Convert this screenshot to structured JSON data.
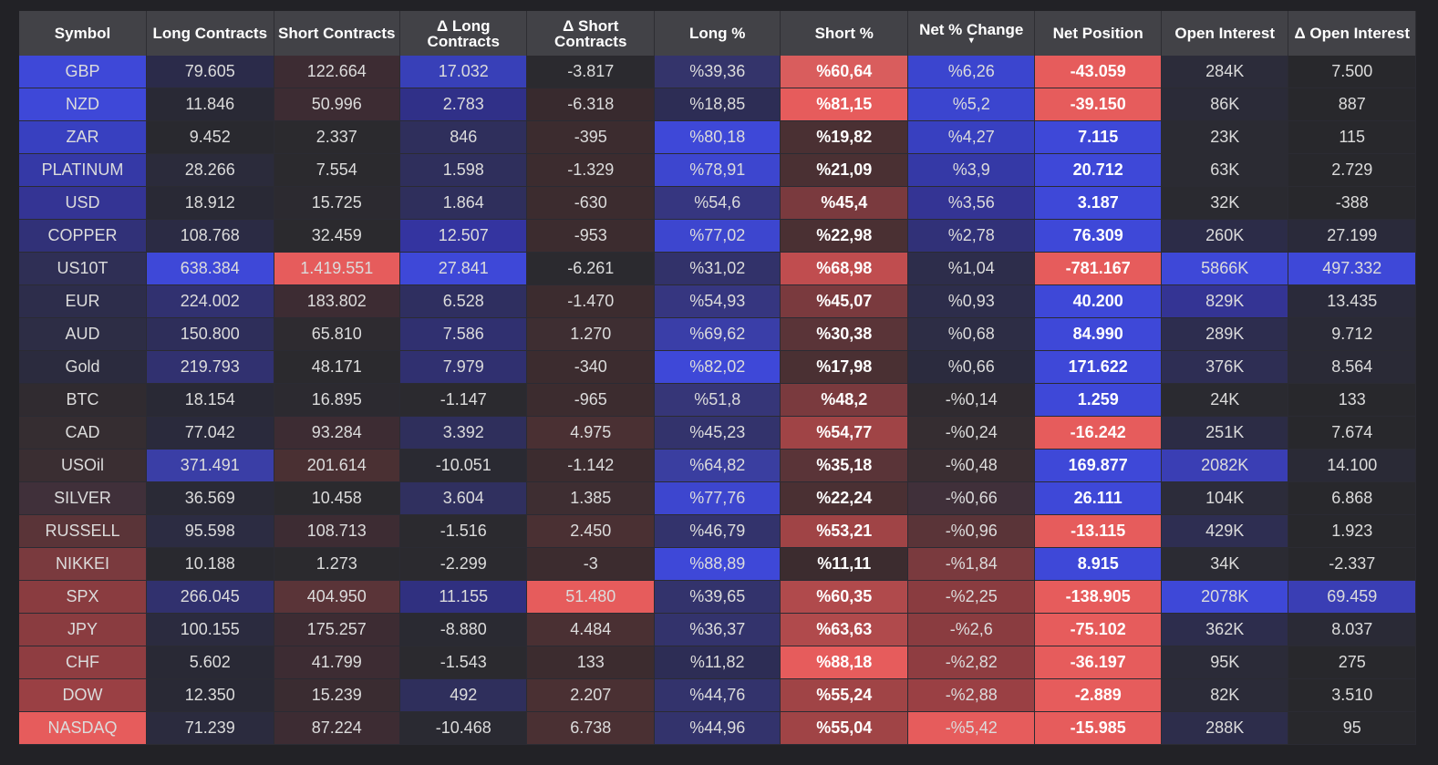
{
  "table": {
    "columns": [
      {
        "key": "symbol",
        "label": "Symbol",
        "width": 139
      },
      {
        "key": "long",
        "label": "Long Contracts",
        "width": 139
      },
      {
        "key": "short",
        "label": "Short Contracts",
        "width": 138
      },
      {
        "key": "dlong",
        "label": "Δ Long Contracts",
        "width": 139
      },
      {
        "key": "dshort",
        "label": "Δ Short Contracts",
        "width": 139
      },
      {
        "key": "longpct",
        "label": "Long %",
        "width": 138
      },
      {
        "key": "shortpct",
        "label": "Short %",
        "width": 139
      },
      {
        "key": "netchg",
        "label": "Net % Change",
        "width": 139,
        "sorted": true,
        "sort_icon": "caret-down-icon",
        "sort_glyph": "▾"
      },
      {
        "key": "netpos",
        "label": "Net Position",
        "width": 138
      },
      {
        "key": "oi",
        "label": "Open Interest",
        "width": 139
      },
      {
        "key": "doi",
        "label": "Δ Open Interest",
        "width": 139
      }
    ],
    "rows": [
      {
        "symbol": "GBP",
        "long": "79.605",
        "short": "122.664",
        "dlong": "17.032",
        "dshort": "-3.817",
        "longpct": "%39,36",
        "shortpct": "%60,64",
        "netchg": "%6,26",
        "netpos": "-43.059",
        "oi": "284K",
        "doi": "7.500"
      },
      {
        "symbol": "NZD",
        "long": "11.846",
        "short": "50.996",
        "dlong": "2.783",
        "dshort": "-6.318",
        "longpct": "%18,85",
        "shortpct": "%81,15",
        "netchg": "%5,2",
        "netpos": "-39.150",
        "oi": "86K",
        "doi": "887"
      },
      {
        "symbol": "ZAR",
        "long": "9.452",
        "short": "2.337",
        "dlong": "846",
        "dshort": "-395",
        "longpct": "%80,18",
        "shortpct": "%19,82",
        "netchg": "%4,27",
        "netpos": "7.115",
        "oi": "23K",
        "doi": "115"
      },
      {
        "symbol": "PLATINUM",
        "long": "28.266",
        "short": "7.554",
        "dlong": "1.598",
        "dshort": "-1.329",
        "longpct": "%78,91",
        "shortpct": "%21,09",
        "netchg": "%3,9",
        "netpos": "20.712",
        "oi": "63K",
        "doi": "2.729"
      },
      {
        "symbol": "USD",
        "long": "18.912",
        "short": "15.725",
        "dlong": "1.864",
        "dshort": "-630",
        "longpct": "%54,6",
        "shortpct": "%45,4",
        "netchg": "%3,56",
        "netpos": "3.187",
        "oi": "32K",
        "doi": "-388"
      },
      {
        "symbol": "COPPER",
        "long": "108.768",
        "short": "32.459",
        "dlong": "12.507",
        "dshort": "-953",
        "longpct": "%77,02",
        "shortpct": "%22,98",
        "netchg": "%2,78",
        "netpos": "76.309",
        "oi": "260K",
        "doi": "27.199"
      },
      {
        "symbol": "US10T",
        "long": "638.384",
        "short": "1.419.551",
        "dlong": "27.841",
        "dshort": "-6.261",
        "longpct": "%31,02",
        "shortpct": "%68,98",
        "netchg": "%1,04",
        "netpos": "-781.167",
        "oi": "5866K",
        "doi": "497.332"
      },
      {
        "symbol": "EUR",
        "long": "224.002",
        "short": "183.802",
        "dlong": "6.528",
        "dshort": "-1.470",
        "longpct": "%54,93",
        "shortpct": "%45,07",
        "netchg": "%0,93",
        "netpos": "40.200",
        "oi": "829K",
        "doi": "13.435"
      },
      {
        "symbol": "AUD",
        "long": "150.800",
        "short": "65.810",
        "dlong": "7.586",
        "dshort": "1.270",
        "longpct": "%69,62",
        "shortpct": "%30,38",
        "netchg": "%0,68",
        "netpos": "84.990",
        "oi": "289K",
        "doi": "9.712"
      },
      {
        "symbol": "Gold",
        "long": "219.793",
        "short": "48.171",
        "dlong": "7.979",
        "dshort": "-340",
        "longpct": "%82,02",
        "shortpct": "%17,98",
        "netchg": "%0,66",
        "netpos": "171.622",
        "oi": "376K",
        "doi": "8.564"
      },
      {
        "symbol": "BTC",
        "long": "18.154",
        "short": "16.895",
        "dlong": "-1.147",
        "dshort": "-965",
        "longpct": "%51,8",
        "shortpct": "%48,2",
        "netchg": "-%0,14",
        "netpos": "1.259",
        "oi": "24K",
        "doi": "133"
      },
      {
        "symbol": "CAD",
        "long": "77.042",
        "short": "93.284",
        "dlong": "3.392",
        "dshort": "4.975",
        "longpct": "%45,23",
        "shortpct": "%54,77",
        "netchg": "-%0,24",
        "netpos": "-16.242",
        "oi": "251K",
        "doi": "7.674"
      },
      {
        "symbol": "USOil",
        "long": "371.491",
        "short": "201.614",
        "dlong": "-10.051",
        "dshort": "-1.142",
        "longpct": "%64,82",
        "shortpct": "%35,18",
        "netchg": "-%0,48",
        "netpos": "169.877",
        "oi": "2082K",
        "doi": "14.100"
      },
      {
        "symbol": "SILVER",
        "long": "36.569",
        "short": "10.458",
        "dlong": "3.604",
        "dshort": "1.385",
        "longpct": "%77,76",
        "shortpct": "%22,24",
        "netchg": "-%0,66",
        "netpos": "26.111",
        "oi": "104K",
        "doi": "6.868"
      },
      {
        "symbol": "RUSSELL",
        "long": "95.598",
        "short": "108.713",
        "dlong": "-1.516",
        "dshort": "2.450",
        "longpct": "%46,79",
        "shortpct": "%53,21",
        "netchg": "-%0,96",
        "netpos": "-13.115",
        "oi": "429K",
        "doi": "1.923"
      },
      {
        "symbol": "NIKKEI",
        "long": "10.188",
        "short": "1.273",
        "dlong": "-2.299",
        "dshort": "-3",
        "longpct": "%88,89",
        "shortpct": "%11,11",
        "netchg": "-%1,84",
        "netpos": "8.915",
        "oi": "34K",
        "doi": "-2.337"
      },
      {
        "symbol": "SPX",
        "long": "266.045",
        "short": "404.950",
        "dlong": "11.155",
        "dshort": "51.480",
        "longpct": "%39,65",
        "shortpct": "%60,35",
        "netchg": "-%2,25",
        "netpos": "-138.905",
        "oi": "2078K",
        "doi": "69.459"
      },
      {
        "symbol": "JPY",
        "long": "100.155",
        "short": "175.257",
        "dlong": "-8.880",
        "dshort": "4.484",
        "longpct": "%36,37",
        "shortpct": "%63,63",
        "netchg": "-%2,6",
        "netpos": "-75.102",
        "oi": "362K",
        "doi": "8.037"
      },
      {
        "symbol": "CHF",
        "long": "5.602",
        "short": "41.799",
        "dlong": "-1.543",
        "dshort": "133",
        "longpct": "%11,82",
        "shortpct": "%88,18",
        "netchg": "-%2,82",
        "netpos": "-36.197",
        "oi": "95K",
        "doi": "275"
      },
      {
        "symbol": "DOW",
        "long": "12.350",
        "short": "15.239",
        "dlong": "492",
        "dshort": "2.207",
        "longpct": "%44,76",
        "shortpct": "%55,24",
        "netchg": "-%2,88",
        "netpos": "-2.889",
        "oi": "82K",
        "doi": "3.510"
      },
      {
        "symbol": "NASDAQ",
        "long": "71.239",
        "short": "87.224",
        "dlong": "-10.468",
        "dshort": "6.738",
        "longpct": "%44,96",
        "shortpct": "%55,04",
        "netchg": "-%5,42",
        "netpos": "-15.985",
        "oi": "288K",
        "doi": "95"
      }
    ],
    "cell_colors": [
      [
        "#3e48d8",
        "#2b2b4a",
        "#3d2c33",
        "#3840b8",
        "#2b2a2f",
        "#34346b",
        "#d95d5d",
        "#3b45cf",
        "#e65c5c",
        "#2c2c3a",
        "#28282c"
      ],
      [
        "#3e48d8",
        "#292935",
        "#3d2c33",
        "#303088",
        "#382a2e",
        "#2d2d55",
        "#e65c5c",
        "#3b45cf",
        "#e65c5c",
        "#2b2b38",
        "#28282c"
      ],
      [
        "#3840c0",
        "#29292f",
        "#2b2a2e",
        "#2f2f5c",
        "#3c2c2f",
        "#3e48d8",
        "#4a3033",
        "#3840c0",
        "#3e48d8",
        "#2b2b33",
        "#28282c"
      ],
      [
        "#3539a6",
        "#2b2b3b",
        "#2b2a2e",
        "#2f2f5c",
        "#3c2c2f",
        "#3d46cf",
        "#4a3033",
        "#3539a6",
        "#3e48d8",
        "#2b2b33",
        "#28282c"
      ],
      [
        "#343494",
        "#292935",
        "#2c2a30",
        "#2f2f5c",
        "#3c2c2f",
        "#363680",
        "#7a3a3e",
        "#343494",
        "#3e48d8",
        "#2a2a30",
        "#28282c"
      ],
      [
        "#313178",
        "#2b2b44",
        "#2b2a2e",
        "#3434a0",
        "#3c2c2f",
        "#3d46cf",
        "#4a3033",
        "#313178",
        "#3e48d8",
        "#2c2c48",
        "#2a2a3a"
      ],
      [
        "#2f2f55",
        "#3e48d8",
        "#e65c5c",
        "#3e48d8",
        "#2b2a2f",
        "#32326a",
        "#c04d4f",
        "#2d2d4b",
        "#e65c5c",
        "#3e48d8",
        "#3e48d8"
      ],
      [
        "#2d2d4b",
        "#313170",
        "#3d2c33",
        "#2f2f60",
        "#3c2c2f",
        "#363680",
        "#7a3a3e",
        "#2d2d4b",
        "#3e48d8",
        "#343494",
        "#2a2a3a"
      ],
      [
        "#2d2d45",
        "#2e2e5a",
        "#2e2b30",
        "#303070",
        "#3e2e32",
        "#3a3ea8",
        "#5a3438",
        "#2d2d45",
        "#3e48d8",
        "#2d2d4f",
        "#2a2a36"
      ],
      [
        "#2b2b3e",
        "#313170",
        "#2b2a2e",
        "#303070",
        "#3c2c2f",
        "#3e48d8",
        "#4a3033",
        "#2b2b3e",
        "#3e48d8",
        "#2e2e54",
        "#2a2a36"
      ],
      [
        "#302b30",
        "#292935",
        "#2c2a30",
        "#2b2a2f",
        "#3c2c2f",
        "#363678",
        "#7a3a3e",
        "#302b30",
        "#3e48d8",
        "#2a2a30",
        "#28282c"
      ],
      [
        "#352d31",
        "#2a2a3c",
        "#3d2c33",
        "#2f2f5c",
        "#4a3033",
        "#33336c",
        "#a04446",
        "#352d31",
        "#e65c5c",
        "#2c2c45",
        "#28282c"
      ],
      [
        "#3a2e32",
        "#3a3ea6",
        "#4a3033",
        "#2a2a32",
        "#3c2c2f",
        "#3a3ea0",
        "#5a3438",
        "#3a2e32",
        "#3e48d8",
        "#3a3eb4",
        "#2a2a36"
      ],
      [
        "#40303a",
        "#2a2a36",
        "#2b2a2e",
        "#30305f",
        "#3e2e32",
        "#3d46cf",
        "#4a3033",
        "#40303a",
        "#3e48d8",
        "#2c2c3a",
        "#28282c"
      ],
      [
        "#5a3438",
        "#2c2c42",
        "#3d2c33",
        "#2b2a2f",
        "#4a3033",
        "#33336c",
        "#a04446",
        "#5a3438",
        "#e65c5c",
        "#2e2e52",
        "#28282c"
      ],
      [
        "#7a3a3e",
        "#29292f",
        "#2b2a2e",
        "#2b2a2f",
        "#3c2c2f",
        "#3e48d8",
        "#3c2c2f",
        "#7a3a3e",
        "#3e48d8",
        "#2b2b33",
        "#28282c"
      ],
      [
        "#8a3c40",
        "#31316e",
        "#5a3438",
        "#303080",
        "#e65c5c",
        "#33336c",
        "#b04a4c",
        "#8a3c40",
        "#e65c5c",
        "#3e48d8",
        "#3a3eb4"
      ],
      [
        "#8a3c40",
        "#2b2b3f",
        "#3d2c33",
        "#2a2a32",
        "#4a3033",
        "#33336c",
        "#b04a4c",
        "#8a3c40",
        "#e65c5c",
        "#2d2d4d",
        "#2a2a36"
      ],
      [
        "#8f3d41",
        "#292935",
        "#3d2c33",
        "#2b2a2f",
        "#3c2c2f",
        "#2d2d55",
        "#e65c5c",
        "#8f3d41",
        "#e65c5c",
        "#2b2b38",
        "#28282c"
      ],
      [
        "#9a4044",
        "#292935",
        "#3a2c31",
        "#2f2f5c",
        "#4a3033",
        "#33336c",
        "#a04446",
        "#9a4044",
        "#e65c5c",
        "#2b2b38",
        "#28282c"
      ],
      [
        "#e65c5c",
        "#2b2b3e",
        "#3d2c33",
        "#2a2a32",
        "#4a3033",
        "#33336c",
        "#a04446",
        "#e65c5c",
        "#e65c5c",
        "#2d2d4b",
        "#28282c"
      ]
    ],
    "bold_columns": [
      "shortpct",
      "netpos"
    ]
  }
}
